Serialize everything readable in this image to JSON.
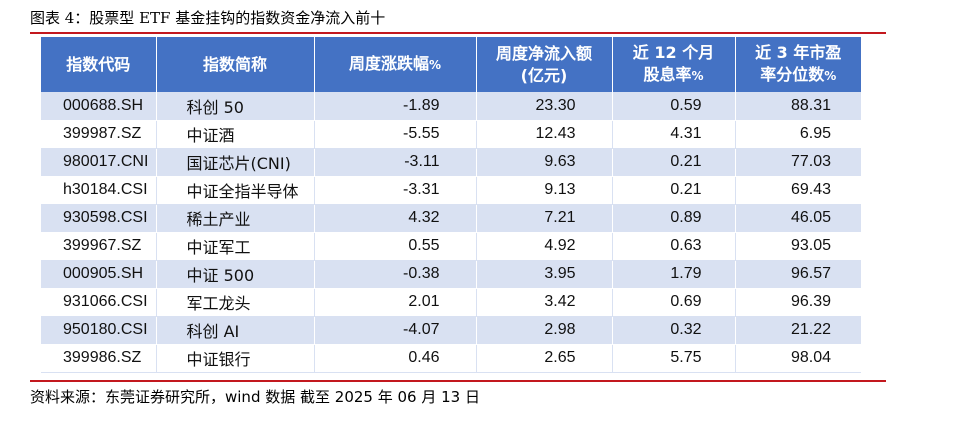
{
  "title": "图表 4：股票型 ETF 基金挂钩的指数资金净流入前十",
  "headers": {
    "code": "指数代码",
    "name": "指数简称",
    "change_main": "周度涨跌幅",
    "change_unit": "%",
    "flow_line1": "周度净流入额",
    "flow_line2": "(亿元)",
    "yield_line1": "近 12 个月",
    "yield_line2_main": "股息率",
    "yield_unit": "%",
    "pctl_line1": "近 3 年市盈",
    "pctl_line2_main": "率分位数",
    "pctl_unit": "%"
  },
  "rows": [
    {
      "code": "000688.SH",
      "name": "科创 50",
      "change": "-1.89",
      "flow": "23.30",
      "yield": "0.59",
      "pctl": "88.31"
    },
    {
      "code": "399987.SZ",
      "name": "中证酒",
      "change": "-5.55",
      "flow": "12.43",
      "yield": "4.31",
      "pctl": "6.95"
    },
    {
      "code": "980017.CNI",
      "name": "国证芯片(CNI)",
      "change": "-3.11",
      "flow": "9.63",
      "yield": "0.21",
      "pctl": "77.03"
    },
    {
      "code": "h30184.CSI",
      "name": "中证全指半导体",
      "change": "-3.31",
      "flow": "9.13",
      "yield": "0.21",
      "pctl": "69.43"
    },
    {
      "code": "930598.CSI",
      "name": "稀土产业",
      "change": "4.32",
      "flow": "7.21",
      "yield": "0.89",
      "pctl": "46.05"
    },
    {
      "code": "399967.SZ",
      "name": "中证军工",
      "change": "0.55",
      "flow": "4.92",
      "yield": "0.63",
      "pctl": "93.05"
    },
    {
      "code": "000905.SH",
      "name": "中证 500",
      "change": "-0.38",
      "flow": "3.95",
      "yield": "1.79",
      "pctl": "96.57"
    },
    {
      "code": "931066.CSI",
      "name": "军工龙头",
      "change": "2.01",
      "flow": "3.42",
      "yield": "0.69",
      "pctl": "96.39"
    },
    {
      "code": "950180.CSI",
      "name": "科创 AI",
      "change": "-4.07",
      "flow": "2.98",
      "yield": "0.32",
      "pctl": "21.22"
    },
    {
      "code": "399986.SZ",
      "name": "中证银行",
      "change": "0.46",
      "flow": "2.65",
      "yield": "5.75",
      "pctl": "98.04"
    }
  ],
  "source": "资料来源：东莞证券研究所，wind 数据   截至 2025 年 06 月 13 日",
  "colors": {
    "header_bg": "#4472c4",
    "stripe": "#d9e1f2",
    "rule": "#c3181e"
  }
}
